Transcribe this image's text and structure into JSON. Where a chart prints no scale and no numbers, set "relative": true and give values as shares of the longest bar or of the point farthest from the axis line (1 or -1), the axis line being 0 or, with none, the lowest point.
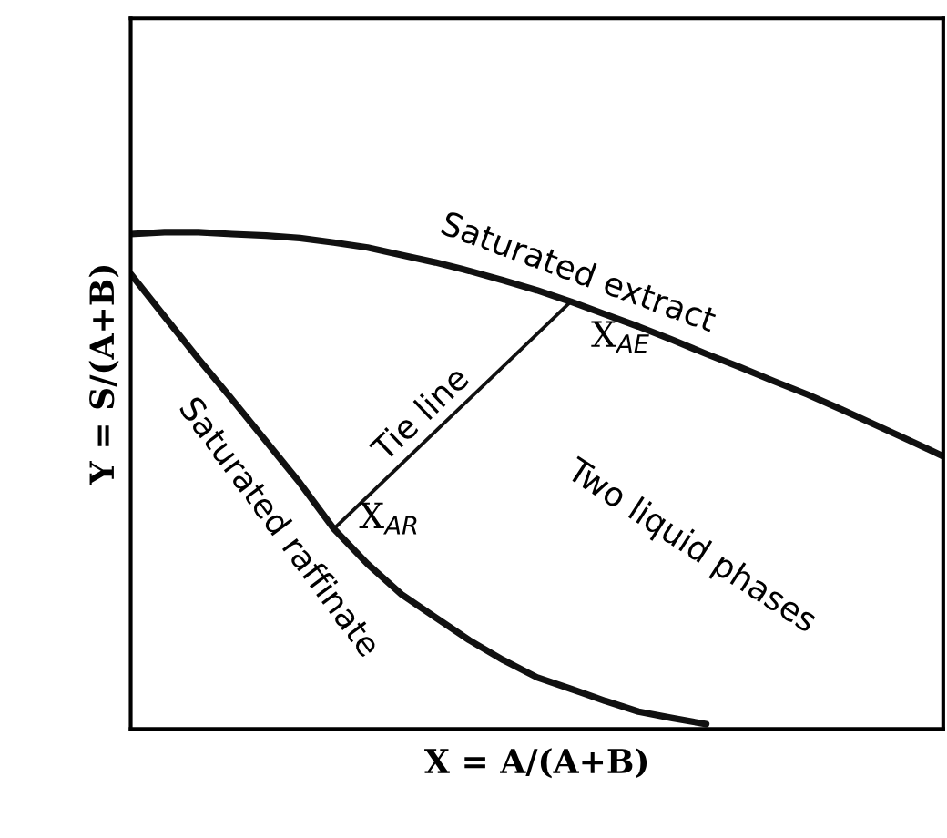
{
  "chart_data": {
    "type": "line",
    "relative": true,
    "xlabel": "X = A/(A+B)",
    "ylabel": "Y = S/(A+B)",
    "marker": "none",
    "line_style": "solid",
    "categories": [
      null,
      null,
      null,
      null,
      null,
      null,
      null,
      null,
      null,
      null,
      null,
      null,
      null,
      null,
      null,
      null,
      null,
      null,
      null,
      null,
      null,
      null,
      null,
      null,
      null
    ],
    "series": [
      {
        "name": "Saturated extract",
        "color": "#111111",
        "values": [
          0.996,
          1.0,
          1.0,
          0.996,
          0.993,
          0.988,
          0.979,
          0.969,
          0.954,
          0.939,
          0.922,
          0.903,
          0.883,
          0.86,
          0.835,
          0.81,
          0.783,
          0.755,
          0.728,
          0.7,
          0.673,
          0.643,
          0.612,
          0.581,
          0.549
        ]
      },
      {
        "name": "Saturated raffinate",
        "color": "#111111",
        "values": [
          0.916,
          0.83,
          0.745,
          0.663,
          0.579,
          0.495,
          0.403,
          0.332,
          0.271,
          0.225,
          0.179,
          0.139,
          0.104,
          0.081,
          0.057,
          0.035,
          0.022,
          0.01,
          null,
          null,
          null,
          null,
          null,
          null,
          null
        ]
      },
      {
        "name": "Tie line",
        "color": "#111111",
        "values": [
          null,
          null,
          null,
          null,
          null,
          null,
          0.403,
          null,
          null,
          null,
          null,
          null,
          null,
          0.86,
          null,
          null,
          null,
          null,
          null,
          null,
          null,
          null,
          null,
          null,
          null
        ]
      }
    ],
    "annotations": [
      "X$_{AE}$",
      "X$_{AR}$",
      "Two liquid phases"
    ]
  }
}
